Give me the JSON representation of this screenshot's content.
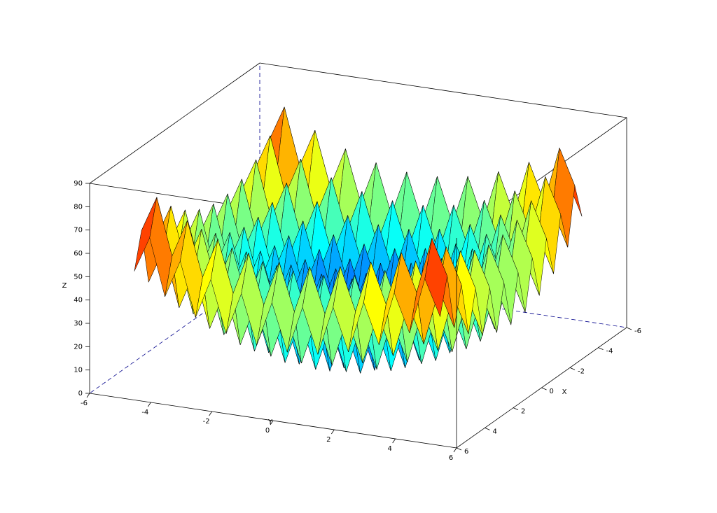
{
  "chart_data": {
    "type": "surface",
    "colormap": "jet",
    "x_label": "X",
    "y_label": "Y",
    "z_label": "Z",
    "xlim": [
      -6,
      6
    ],
    "ylim": [
      -6,
      6
    ],
    "zlim": [
      0,
      90
    ],
    "xticks": [
      -6,
      -4,
      -2,
      0,
      2,
      4,
      6
    ],
    "yticks": [
      -6,
      -4,
      -2,
      0,
      2,
      4,
      6
    ],
    "zticks": [
      0,
      10,
      20,
      30,
      40,
      50,
      60,
      70,
      80,
      90
    ],
    "x": [
      -5,
      -4.5,
      -4,
      -3.5,
      -3,
      -2.5,
      -2,
      -1.5,
      -1,
      -0.5,
      0,
      0.5,
      1,
      1.5,
      2,
      2.5,
      3,
      3.5,
      4,
      4.5,
      5
    ],
    "y": [
      -5,
      -4.5,
      -4,
      -3.5,
      -3,
      -2.5,
      -2,
      -1.5,
      -1,
      -0.5,
      0,
      0.5,
      1,
      1.5,
      2,
      2.5,
      3,
      3.5,
      4,
      4.5,
      5
    ],
    "z": [
      [
        50,
        65.25,
        41,
        57.25,
        34,
        51.25,
        29,
        47.25,
        26,
        45.25,
        25,
        45.25,
        26,
        47.25,
        29,
        51.25,
        34,
        57.25,
        41,
        65.25,
        50
      ],
      [
        65.25,
        80.5,
        56.25,
        72.5,
        49.25,
        66.5,
        44.25,
        62.5,
        41.25,
        60.5,
        40.25,
        60.5,
        41.25,
        62.5,
        44.25,
        66.5,
        49.25,
        72.5,
        56.25,
        80.5,
        65.25
      ],
      [
        41,
        56.25,
        32,
        48.25,
        25,
        42.25,
        20,
        38.25,
        17,
        36.25,
        16,
        36.25,
        17,
        38.25,
        20,
        42.25,
        25,
        48.25,
        32,
        56.25,
        41
      ],
      [
        57.25,
        72.5,
        48.25,
        64.5,
        41.25,
        58.5,
        36.25,
        54.5,
        33.25,
        52.5,
        32.25,
        52.5,
        33.25,
        54.5,
        36.25,
        58.5,
        41.25,
        64.5,
        48.25,
        72.5,
        57.25
      ],
      [
        34,
        49.25,
        25,
        41.25,
        18,
        35.25,
        13,
        31.25,
        10,
        29.25,
        9,
        29.25,
        10,
        31.25,
        13,
        35.25,
        18,
        41.25,
        25,
        49.25,
        34
      ],
      [
        51.25,
        66.5,
        42.25,
        58.5,
        35.25,
        52.5,
        30.25,
        48.5,
        27.25,
        46.5,
        26.25,
        46.5,
        27.25,
        48.5,
        30.25,
        52.5,
        35.25,
        58.5,
        42.25,
        66.5,
        51.25
      ],
      [
        29,
        44.25,
        20,
        36.25,
        13,
        30.25,
        8,
        26.25,
        5,
        24.25,
        4,
        24.25,
        5,
        26.25,
        8,
        30.25,
        13,
        36.25,
        20,
        44.25,
        29
      ],
      [
        47.25,
        62.5,
        38.25,
        54.5,
        31.25,
        48.5,
        26.25,
        44.5,
        23.25,
        42.5,
        22.25,
        42.5,
        23.25,
        44.5,
        26.25,
        48.5,
        31.25,
        54.5,
        38.25,
        62.5,
        47.25
      ],
      [
        26,
        41.25,
        17,
        33.25,
        10,
        27.25,
        5,
        23.25,
        2,
        21.25,
        1,
        21.25,
        2,
        23.25,
        5,
        27.25,
        10,
        33.25,
        17,
        41.25,
        26
      ],
      [
        45.25,
        60.5,
        36.25,
        52.5,
        29.25,
        46.5,
        24.25,
        42.5,
        21.25,
        40.5,
        20.25,
        40.5,
        21.25,
        42.5,
        24.25,
        46.5,
        29.25,
        52.5,
        36.25,
        60.5,
        45.25
      ],
      [
        25,
        40.25,
        16,
        32.25,
        9,
        26.25,
        4,
        22.25,
        1,
        20.25,
        0,
        20.25,
        1,
        22.25,
        4,
        26.25,
        9,
        32.25,
        16,
        40.25,
        25
      ],
      [
        45.25,
        60.5,
        36.25,
        52.5,
        29.25,
        46.5,
        24.25,
        42.5,
        21.25,
        40.5,
        20.25,
        40.5,
        21.25,
        42.5,
        24.25,
        46.5,
        29.25,
        52.5,
        36.25,
        60.5,
        45.25
      ],
      [
        26,
        41.25,
        17,
        33.25,
        10,
        27.25,
        5,
        23.25,
        2,
        21.25,
        1,
        21.25,
        2,
        23.25,
        5,
        27.25,
        10,
        33.25,
        17,
        41.25,
        26
      ],
      [
        47.25,
        62.5,
        38.25,
        54.5,
        31.25,
        48.5,
        26.25,
        44.5,
        23.25,
        42.5,
        22.25,
        42.5,
        23.25,
        44.5,
        26.25,
        48.5,
        31.25,
        54.5,
        38.25,
        62.5,
        47.25
      ],
      [
        29,
        44.25,
        20,
        36.25,
        13,
        30.25,
        8,
        26.25,
        5,
        24.25,
        4,
        24.25,
        5,
        26.25,
        8,
        30.25,
        13,
        36.25,
        20,
        44.25,
        29
      ],
      [
        51.25,
        66.5,
        42.25,
        58.5,
        35.25,
        52.5,
        30.25,
        48.5,
        27.25,
        46.5,
        26.25,
        46.5,
        27.25,
        48.5,
        30.25,
        52.5,
        35.25,
        58.5,
        42.25,
        66.5,
        51.25
      ],
      [
        34,
        49.25,
        25,
        41.25,
        18,
        35.25,
        13,
        31.25,
        10,
        29.25,
        9,
        29.25,
        10,
        31.25,
        13,
        35.25,
        18,
        41.25,
        25,
        49.25,
        34
      ],
      [
        57.25,
        72.5,
        48.25,
        64.5,
        41.25,
        58.5,
        36.25,
        54.5,
        33.25,
        52.5,
        32.25,
        52.5,
        33.25,
        54.5,
        36.25,
        58.5,
        41.25,
        64.5,
        48.25,
        72.5,
        57.25
      ],
      [
        41,
        56.25,
        32,
        48.25,
        25,
        42.25,
        20,
        38.25,
        17,
        36.25,
        16,
        36.25,
        17,
        38.25,
        20,
        42.25,
        25,
        48.25,
        32,
        56.25,
        41
      ],
      [
        65.25,
        80.5,
        56.25,
        72.5,
        49.25,
        66.5,
        44.25,
        62.5,
        41.25,
        60.5,
        40.25,
        60.5,
        41.25,
        62.5,
        44.25,
        66.5,
        49.25,
        72.5,
        56.25,
        80.5,
        65.25
      ],
      [
        50,
        65.25,
        41,
        57.25,
        34,
        51.25,
        29,
        47.25,
        26,
        45.25,
        25,
        45.25,
        26,
        47.25,
        29,
        51.25,
        34,
        57.25,
        41,
        65.25,
        50
      ]
    ]
  }
}
